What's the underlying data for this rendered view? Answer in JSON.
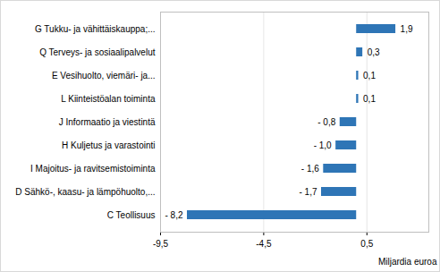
{
  "chart_data": {
    "type": "bar",
    "orientation": "horizontal",
    "categories": [
      "G Tukku- ja vähittäiskauppa;...",
      "Q Terveys- ja sosiaalipalvelut",
      "E Vesihuolto, viemäri- ja...",
      "L Kiinteistöalan toiminta",
      "J Informaatio ja viestintä",
      "H Kuljetus ja varastointi",
      "I Majoitus- ja ravitsemistoiminta",
      "D Sähkö-, kaasu- ja lämpöhuolto,...",
      "C Teollisuus"
    ],
    "values": [
      1.9,
      0.3,
      0.1,
      0.1,
      -0.8,
      -1.0,
      -1.6,
      -1.7,
      -8.2
    ],
    "value_labels": [
      "1,9",
      "0,3",
      "0,1",
      "0,1",
      "- 0,8",
      "- 1,0",
      "- 1,6",
      "- 1,7",
      "- 8,2"
    ],
    "data_labels": true,
    "color": "#2e75b6",
    "xlabel": "Miljardia euroa",
    "xlim": [
      -9.5,
      3.5
    ],
    "xticks": [
      {
        "value": -9.5,
        "label": "-9,5"
      },
      {
        "value": -4.5,
        "label": "-4,5"
      },
      {
        "value": 0.5,
        "label": "0,5"
      }
    ],
    "grid": true
  }
}
